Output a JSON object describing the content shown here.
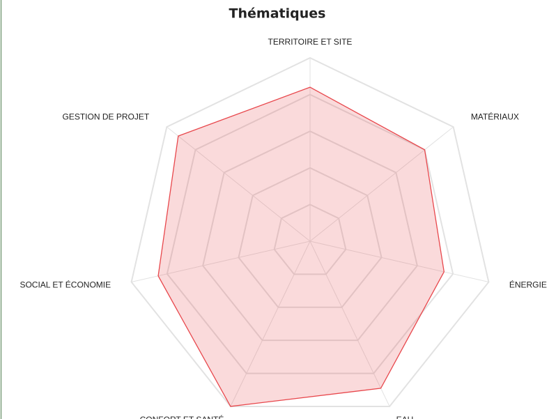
{
  "chart_data": {
    "type": "radar",
    "title": "Thématiques",
    "categories": [
      "TERRITOIRE ET SITE",
      "MATÉRIAUX",
      "ÉNERGIE",
      "EAU",
      "CONFORT ET SANTÉ",
      "SOCIAL ET ÉCONOMIE",
      "GESTION DE PROJET"
    ],
    "values": [
      84,
      80,
      75,
      89,
      100,
      85,
      92
    ],
    "color": "#e8474c",
    "rlim": [
      0,
      100
    ],
    "rticks": [
      20,
      40,
      60,
      80,
      100
    ],
    "grid": true
  }
}
